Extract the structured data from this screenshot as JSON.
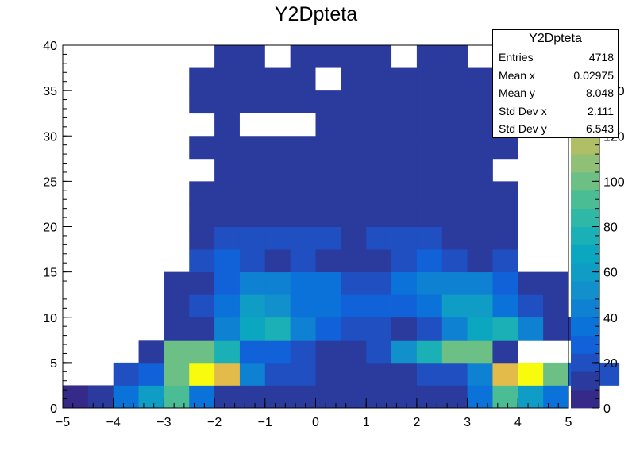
{
  "chart_data": {
    "type": "heatmap",
    "title": "Y2Dpteta",
    "xlim": [
      -5,
      5
    ],
    "ylim": [
      0,
      40
    ],
    "zlim": [
      0,
      160
    ],
    "x_bin_width": 0.5,
    "y_bin_width": 2.5,
    "x_ticks": [
      "−5",
      "−4",
      "−3",
      "−2",
      "−1",
      "0",
      "1",
      "2",
      "3",
      "4",
      "5"
    ],
    "y_ticks": [
      "0",
      "5",
      "10",
      "15",
      "20",
      "25",
      "30",
      "35",
      "40"
    ],
    "z_ticks": [
      "0",
      "20",
      "40",
      "60",
      "80",
      "100",
      "120",
      "140"
    ],
    "palette": [
      "#352a87",
      "#2a3a9d",
      "#1f4fc1",
      "#1162d8",
      "#0b72d9",
      "#0e81d2",
      "#1290cc",
      "#0f9dc5",
      "#0ba7c0",
      "#1ab0b5",
      "#2fb8a5",
      "#4bbd94",
      "#6cc085",
      "#8fc075",
      "#b0be66",
      "#ccbb5a",
      "#e3bb4a",
      "#f4c634",
      "#f9e01c",
      "#f9fb0e"
    ],
    "stats": {
      "title": "Y2Dpteta",
      "rows": [
        {
          "label": "Entries",
          "value": "4718"
        },
        {
          "label": "Mean x",
          "value": "0.02975"
        },
        {
          "label": "Mean y",
          "value": "8.048"
        },
        {
          "label": "Std Dev x",
          "value": "2.111"
        },
        {
          "label": "Std Dev y",
          "value": "6.543"
        }
      ]
    },
    "rows": [
      {
        "y": 0,
        "x": -5,
        "z": [
          4,
          8,
          32,
          58,
          92,
          36,
          14,
          14,
          8,
          8,
          8,
          8,
          8,
          8,
          8,
          14,
          36,
          92,
          58,
          32
        ]
      },
      {
        "y": 2.5,
        "x": -4,
        "z": [
          16,
          30,
          100,
          152,
          130,
          44,
          22,
          22,
          8,
          8,
          8,
          8,
          22,
          22,
          44,
          130,
          160,
          98,
          30,
          16
        ]
      },
      {
        "y": 5,
        "x": -3.5,
        "z": [
          8,
          96,
          100,
          78,
          28,
          28,
          18,
          8,
          8,
          18,
          48,
          78,
          100,
          96,
          8
        ]
      },
      {
        "y": 7.5,
        "x": -3,
        "z": [
          8,
          14,
          42,
          68,
          72,
          44,
          30,
          22,
          22,
          14,
          22,
          44,
          68,
          72,
          44,
          14,
          8
        ]
      },
      {
        "y": 10,
        "x": -3,
        "z": [
          8,
          18,
          32,
          56,
          52,
          38,
          34,
          28,
          28,
          26,
          36,
          58,
          56,
          38,
          18,
          8
        ]
      },
      {
        "y": 12.5,
        "x": -3,
        "z": [
          8,
          14,
          28,
          46,
          46,
          34,
          34,
          22,
          22,
          36,
          40,
          44,
          46,
          28,
          14,
          8
        ]
      },
      {
        "y": 15,
        "x": -2.5,
        "z": [
          18,
          24,
          18,
          14,
          18,
          14,
          12,
          12,
          18,
          24,
          18,
          14,
          18
        ]
      },
      {
        "y": 17.5,
        "x": -2.5,
        "z": [
          8,
          16,
          18,
          18,
          18,
          18,
          8,
          18,
          18,
          16,
          8,
          8,
          8
        ]
      },
      {
        "y": 20,
        "x": -2.5,
        "z": [
          8,
          8,
          14,
          14,
          14,
          14,
          14,
          14,
          14,
          8,
          14,
          8,
          8
        ]
      },
      {
        "y": 22.5,
        "x": -2.5,
        "z": [
          8,
          8,
          8,
          14,
          8,
          8,
          8,
          14,
          8,
          8,
          8,
          8,
          8
        ]
      },
      {
        "y": 25,
        "x": -2,
        "z": [
          8,
          8,
          8,
          8,
          8,
          8,
          8,
          8,
          8,
          8,
          8
        ]
      },
      {
        "y": 27.5,
        "x": -2.5,
        "z": [
          8,
          8,
          8,
          8,
          8,
          8,
          8,
          8,
          8,
          8,
          8,
          8,
          8
        ]
      },
      {
        "y": 30,
        "x": -2,
        "z": [
          8,
          8,
          8,
          8,
          8,
          8,
          8,
          8,
          8,
          8,
          8,
          8,
          8
        ]
      },
      {
        "y": 32.5,
        "x": -2.5,
        "z": [
          8,
          8,
          8,
          8,
          8,
          8,
          8,
          8,
          8,
          8,
          8,
          8,
          8
        ]
      },
      {
        "y": 35,
        "x": -2.5,
        "z": [
          8,
          8,
          8,
          8,
          8,
          8,
          8,
          8,
          8,
          8,
          8,
          8,
          8
        ]
      },
      {
        "y": 37.5,
        "x": -2,
        "z": [
          8,
          8,
          8,
          8,
          8,
          8,
          8,
          8,
          8,
          8
        ]
      },
      {
        "y": 40,
        "x": -1.5,
        "z": [
          8,
          0,
          8,
          8,
          8,
          8,
          8,
          0,
          8
        ]
      }
    ],
    "holes": [
      {
        "x0": -1.5,
        "x1": 0,
        "y0": 30,
        "y1": 32.5
      },
      {
        "x0": 0,
        "x1": 0.5,
        "y0": 35,
        "y1": 37.5
      },
      {
        "x0": -1.0,
        "x1": -0.5,
        "y0": 37.5,
        "y1": 40
      },
      {
        "x0": 1.5,
        "x1": 2.0,
        "y0": 37.5,
        "y1": 40
      }
    ]
  }
}
